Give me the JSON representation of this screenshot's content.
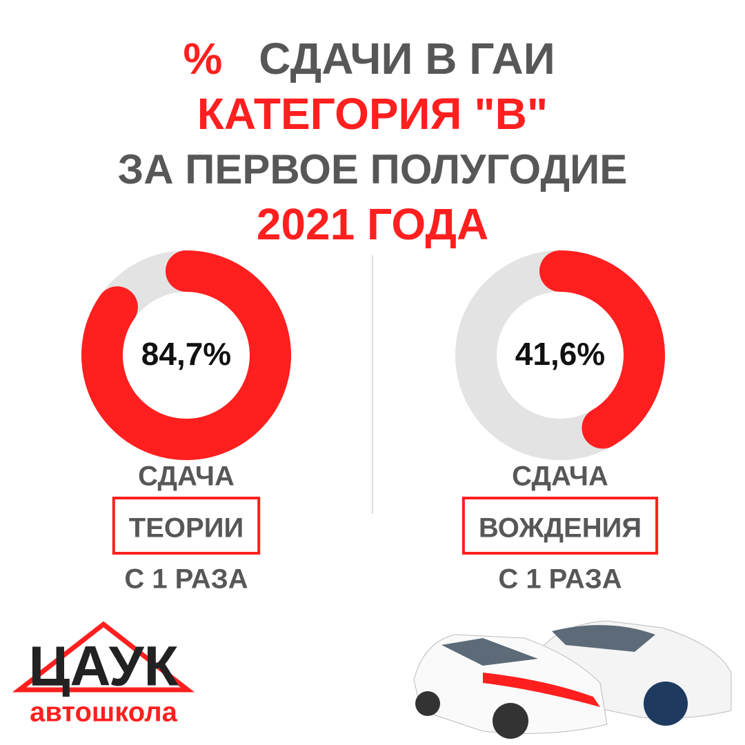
{
  "title": {
    "percent_sign": "%",
    "line1": "СДАЧИ В ГАИ",
    "line2": "КАТЕГОРИЯ \"B\"",
    "line3": "ЗА ПЕРВОЕ ПОЛУГОДИЕ",
    "line4": "2021 ГОДА"
  },
  "chart_data": [
    {
      "type": "donut",
      "values": [
        84.7
      ],
      "value_labels": [
        "84,7%"
      ],
      "color": "#ff1f1f",
      "track_color": "#e3e3e3",
      "caption_top": "СДАЧА",
      "caption_boxed": "ТЕОРИИ",
      "caption_bottom": "С 1 РАЗА"
    },
    {
      "type": "donut",
      "values": [
        41.6
      ],
      "value_labels": [
        "41,6%"
      ],
      "color": "#ff1f1f",
      "track_color": "#e3e3e3",
      "caption_top": "СДАЧА",
      "caption_boxed": "ВОЖДЕНИЯ",
      "caption_bottom": "С 1 РАЗА"
    }
  ],
  "logo": {
    "name": "ЦАУК",
    "subtitle": "автошкола"
  }
}
